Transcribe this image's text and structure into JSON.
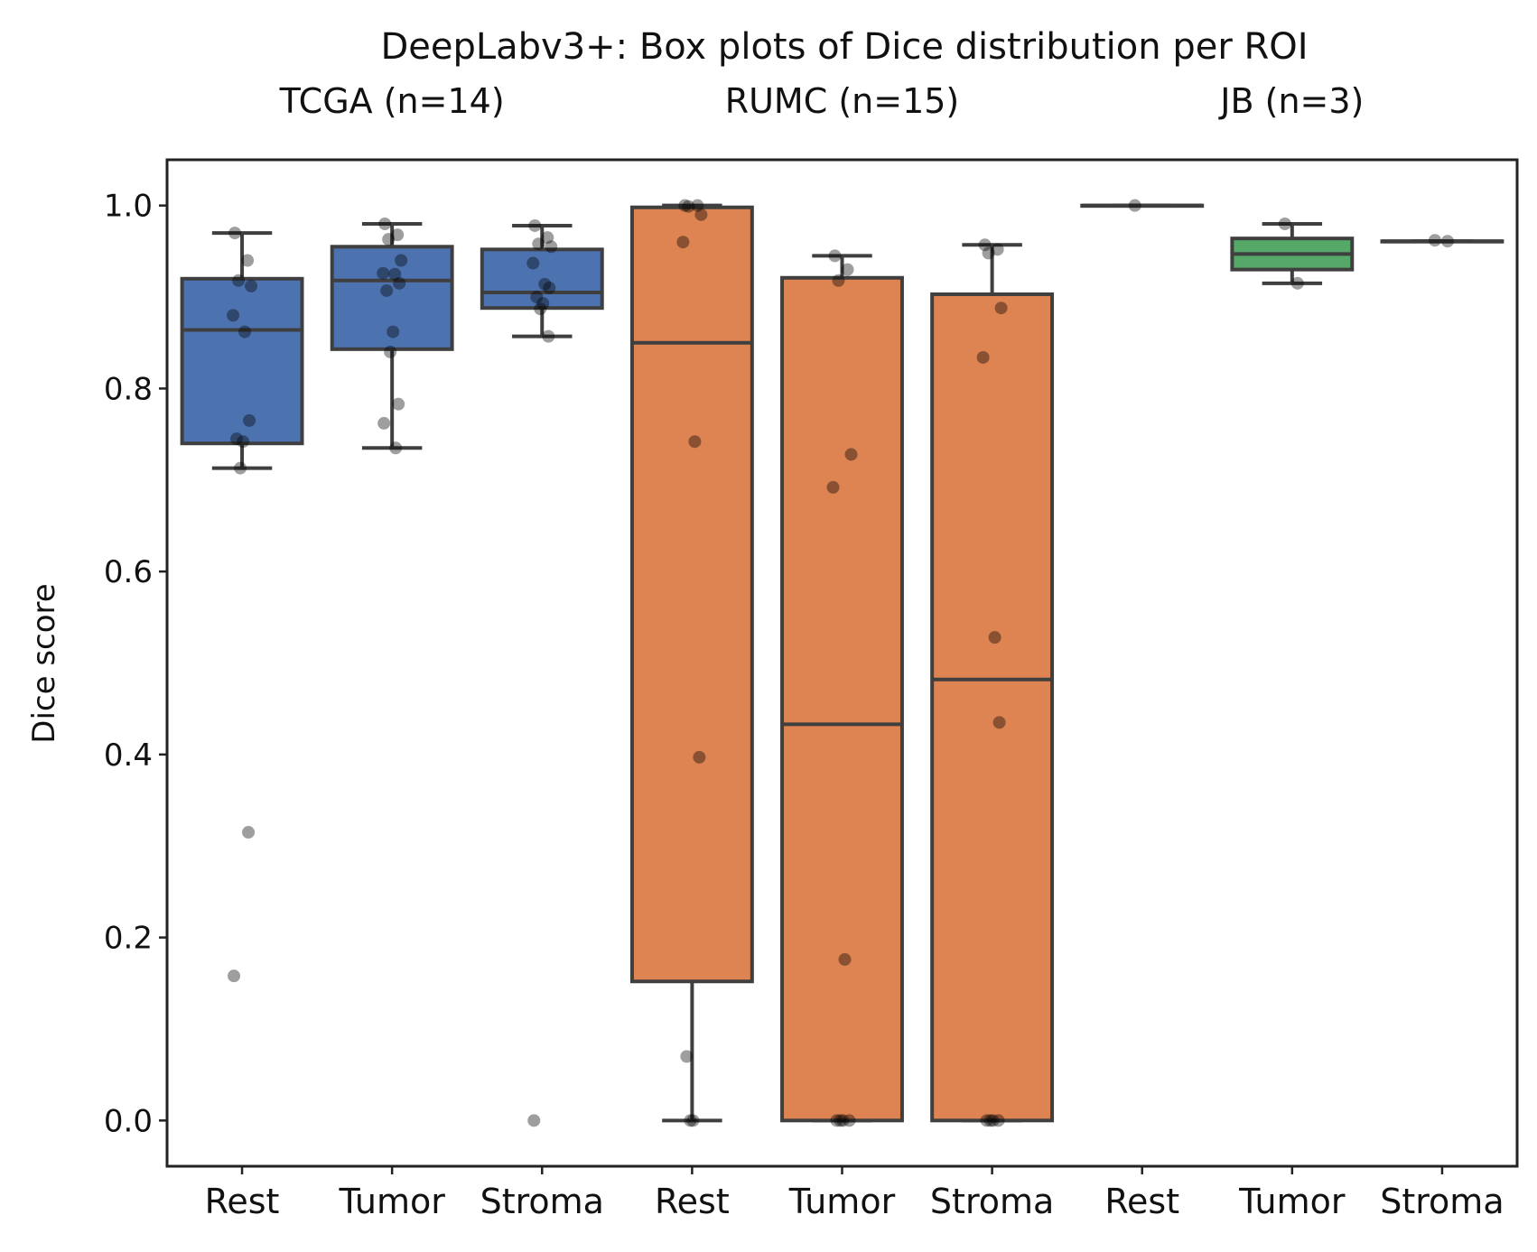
{
  "chart_data": {
    "type": "box",
    "title": "DeepLabv3+: Box plots of Dice distribution per ROI",
    "ylabel": "Dice score",
    "xlabel": "",
    "ylim": [
      -0.05,
      1.05
    ],
    "yticks": [
      "0.0",
      "0.2",
      "0.4",
      "0.6",
      "0.8",
      "1.0"
    ],
    "grid": false,
    "colors": {
      "TCGA": "#4c72b0",
      "RUMC": "#dd8452",
      "JB": "#55a868",
      "edge": "#3f3f3f",
      "point": "#000000"
    },
    "groups": [
      {
        "label": "TCGA (n=14)",
        "color": "#4c72b0",
        "boxes": [
          {
            "category": "Rest",
            "whislo": 0.713,
            "q1": 0.74,
            "median": 0.864,
            "q3": 0.92,
            "whishi": 0.97,
            "points": [
              0.97,
              0.94,
              0.918,
              0.912,
              0.88,
              0.862,
              0.765,
              0.745,
              0.742,
              0.713,
              0.315,
              0.158
            ]
          },
          {
            "category": "Tumor",
            "whislo": 0.735,
            "q1": 0.843,
            "median": 0.918,
            "q3": 0.955,
            "whishi": 0.98,
            "points": [
              0.98,
              0.968,
              0.963,
              0.94,
              0.926,
              0.925,
              0.915,
              0.907,
              0.862,
              0.84,
              0.783,
              0.762,
              0.735
            ]
          },
          {
            "category": "Stroma",
            "whislo": 0.857,
            "q1": 0.888,
            "median": 0.905,
            "q3": 0.952,
            "whishi": 0.978,
            "points": [
              0.978,
              0.965,
              0.958,
              0.955,
              0.937,
              0.914,
              0.91,
              0.9,
              0.893,
              0.887,
              0.857,
              0.0
            ]
          }
        ]
      },
      {
        "label": "RUMC (n=15)",
        "color": "#dd8452",
        "boxes": [
          {
            "category": "Rest",
            "whislo": 0.0,
            "q1": 0.152,
            "median": 0.85,
            "q3": 0.998,
            "whishi": 1.0,
            "points": [
              1.0,
              1.0,
              0.999,
              0.99,
              0.96,
              0.742,
              0.397,
              0.07,
              0.0,
              0.0
            ]
          },
          {
            "category": "Tumor",
            "whislo": 0.0,
            "q1": 0.0,
            "median": 0.433,
            "q3": 0.921,
            "whishi": 0.945,
            "points": [
              0.945,
              0.93,
              0.918,
              0.728,
              0.692,
              0.176,
              0.0,
              0.0,
              0.0,
              0.0
            ]
          },
          {
            "category": "Stroma",
            "whislo": 0.0,
            "q1": 0.0,
            "median": 0.482,
            "q3": 0.903,
            "whishi": 0.957,
            "points": [
              0.957,
              0.952,
              0.948,
              0.888,
              0.834,
              0.528,
              0.435,
              0.0,
              0.0,
              0.0,
              0.0
            ]
          }
        ]
      },
      {
        "label": "JB (n=3)",
        "color": "#55a868",
        "boxes": [
          {
            "category": "Rest",
            "whislo": 1.0,
            "q1": 1.0,
            "median": 1.0,
            "q3": 1.0,
            "whishi": 1.0,
            "points": [
              1.0
            ]
          },
          {
            "category": "Tumor",
            "whislo": 0.915,
            "q1": 0.93,
            "median": 0.947,
            "q3": 0.964,
            "whishi": 0.98,
            "points": [
              0.98,
              0.915
            ]
          },
          {
            "category": "Stroma",
            "whislo": 0.961,
            "q1": 0.961,
            "median": 0.961,
            "q3": 0.961,
            "whishi": 0.961,
            "points": [
              0.962,
              0.961
            ]
          }
        ]
      }
    ]
  }
}
